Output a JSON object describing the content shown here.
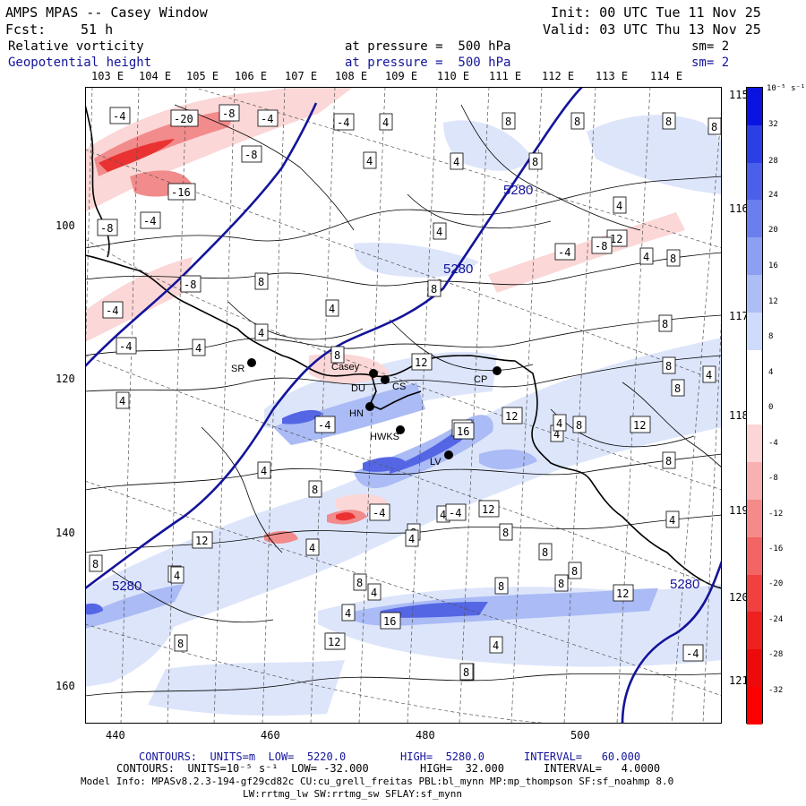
{
  "header": {
    "title": "AMPS MPAS -- Casey Window",
    "init": "Init: 00 UTC Tue 11 Nov 25",
    "fcst_label": "Fcst:",
    "fcst_value": "51 h",
    "valid": "Valid: 03 UTC Thu 13 Nov 25",
    "field1": "Relative vorticity",
    "field1_pressure": "at pressure =  500 hPa",
    "field1_sm": "sm= 2",
    "field2": "Geopotential height",
    "field2_pressure": "at pressure =  500 hPa",
    "field2_sm": "sm= 2"
  },
  "top_lon_labels": [
    "103 E",
    "104 E",
    "105 E",
    "106 E",
    "107 E",
    "108 E",
    "109 E",
    "110 E",
    "111 E",
    "112 E",
    "113 E",
    "114 E"
  ],
  "right_lon_labels": [
    "115 E",
    "116 E",
    "117 E",
    "118 E",
    "119 E",
    "120 E",
    "121 E"
  ],
  "x_ticks": [
    "440",
    "460",
    "480",
    "500"
  ],
  "y_ticks": [
    "100",
    "120",
    "140",
    "160"
  ],
  "colorbar": {
    "unit": "10⁻⁵ s⁻¹",
    "labels": [
      "32",
      "28",
      "24",
      "20",
      "16",
      "12",
      "8",
      "4",
      "0",
      "-4",
      "-8",
      "-12",
      "-16",
      "-20",
      "-24",
      "-28",
      "-32"
    ],
    "colors": [
      "#0a14e0",
      "#2a3fe6",
      "#4a60ea",
      "#6a7fee",
      "#8c9ff2",
      "#adbdf6",
      "#cfdbfa",
      "#ffffff",
      "#ffffff",
      "#fcd6d6",
      "#f9b0b0",
      "#f68a8a",
      "#f36464",
      "#f04040",
      "#ee2020",
      "#ec0a0a",
      "#ff0000"
    ]
  },
  "stations": [
    {
      "label": "SR"
    },
    {
      "label": "Casey"
    },
    {
      "label": "DU"
    },
    {
      "label": "CS"
    },
    {
      "label": "CP"
    },
    {
      "label": "HN"
    },
    {
      "label": "HWKS"
    },
    {
      "label": "LV"
    }
  ],
  "height_contour_labels": [
    "5280",
    "5280",
    "5280",
    "5280"
  ],
  "vorticity_labels": [
    "-4",
    "-20",
    "-8",
    "-4",
    "-4",
    "4",
    "8",
    "8",
    "8",
    "8",
    "-8",
    "4",
    "4",
    "8",
    "-16",
    "-4",
    "-8",
    "12",
    "4",
    "-4",
    "-8",
    "4",
    "8",
    "4",
    "8",
    "8",
    "-8",
    "-4",
    "8",
    "4",
    "4",
    "4",
    "4",
    "-4",
    "8",
    "8",
    "8",
    "12",
    "-4",
    "12",
    "12",
    "4",
    "8",
    "4",
    "12",
    "4",
    "16",
    "8",
    "8",
    "8",
    "8",
    "4",
    "-4",
    "4",
    "8",
    "4",
    "8",
    "8",
    "4",
    "8",
    "-4",
    "8",
    "12",
    "4",
    "8",
    "4",
    "4",
    "16",
    "8",
    "12",
    "8",
    "12",
    "4",
    "8",
    "4",
    "8",
    "4",
    "-4",
    "8",
    "12"
  ],
  "footer": {
    "line1_a": "CONTOURS:  UNITS=m  LOW=  5220.0",
    "line1_b": "HIGH=  5280.0",
    "line1_c": "INTERVAL=   60.000",
    "line2_a": "CONTOURS:  UNITS=10⁻⁵ s⁻¹  LOW= -32.000",
    "line2_b": "HIGH=  32.000",
    "line2_c": "INTERVAL=   4.0000",
    "line3": "Model Info: MPASv8.2.3-194-gf29cd82c CU:cu_grell_freitas PBL:bl_mynn MP:mp_thompson SF:sf_noahmp 8.0",
    "line4": "LW:rrtmg_lw SW:rrtmg_sw SFLAY:sf_mynn"
  }
}
